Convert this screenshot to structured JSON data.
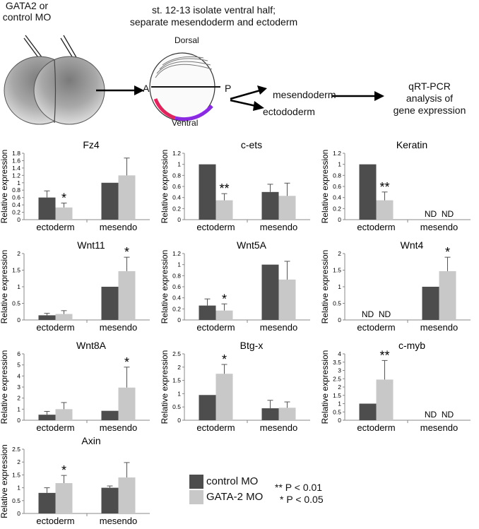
{
  "schematic": {
    "injection_label": [
      "GATA2 or",
      "control MO"
    ],
    "stage_label": [
      "st. 12-13 isolate ventral half;",
      "separate mesendoderm and ectoderm"
    ],
    "dorsal": "Dorsal",
    "ventral": "Ventral",
    "axis_a": "A",
    "axis_p": "P",
    "out_mesendoderm": "mesendoderm",
    "out_ectoderm": "ectododerm",
    "qpcr": [
      "qRT-PCR",
      "analysis of",
      "gene expression"
    ],
    "colors": {
      "red_band": "#e0245e",
      "purple_band": "#8a2be2"
    }
  },
  "legend": {
    "control": "control MO",
    "gata2": "GATA-2 MO",
    "p01": "** P < 0.01",
    "p05": "* P < 0.05"
  },
  "colors": {
    "control": "#4d4d4d",
    "gata2": "#c8c8c8"
  },
  "chart_data": [
    {
      "type": "bar",
      "title": "Fz4",
      "ylabel": "Relative expression",
      "categories": [
        "ectoderm",
        "mesendo"
      ],
      "ylim": [
        0,
        1.8
      ],
      "yticks": [
        0,
        0.2,
        0.4,
        0.6,
        0.8,
        1,
        1.2,
        1.4,
        1.6,
        1.8
      ],
      "series": [
        {
          "name": "control MO",
          "values": [
            0.6,
            1.0
          ],
          "errors": [
            0.18,
            0
          ]
        },
        {
          "name": "GATA-2 MO",
          "values": [
            0.33,
            1.2
          ],
          "errors": [
            0.12,
            0.47
          ]
        }
      ],
      "annotations": [
        {
          "category": 0,
          "series": 1,
          "text": "*"
        }
      ],
      "nd": []
    },
    {
      "type": "bar",
      "title": "c-ets",
      "ylabel": "Relative expression",
      "categories": [
        "ectoderm",
        "mesendo"
      ],
      "ylim": [
        0,
        1.2
      ],
      "yticks": [
        0,
        0.2,
        0.4,
        0.6,
        0.8,
        1,
        1.2
      ],
      "series": [
        {
          "name": "control MO",
          "values": [
            1.0,
            0.5
          ],
          "errors": [
            0,
            0.14
          ]
        },
        {
          "name": "GATA-2 MO",
          "values": [
            0.35,
            0.43
          ],
          "errors": [
            0.12,
            0.23
          ]
        }
      ],
      "annotations": [
        {
          "category": 0,
          "series": 1,
          "text": "**"
        }
      ],
      "nd": []
    },
    {
      "type": "bar",
      "title": "Keratin",
      "ylabel": "Relative expression",
      "categories": [
        "ectoderm",
        "mesendo"
      ],
      "ylim": [
        0,
        1.2
      ],
      "yticks": [
        0,
        0.2,
        0.4,
        0.6,
        0.8,
        1,
        1.2
      ],
      "series": [
        {
          "name": "control MO",
          "values": [
            1.0,
            0
          ],
          "errors": [
            0,
            0
          ]
        },
        {
          "name": "GATA-2 MO",
          "values": [
            0.35,
            0
          ],
          "errors": [
            0.15,
            0
          ]
        }
      ],
      "annotations": [
        {
          "category": 0,
          "series": 1,
          "text": "**"
        }
      ],
      "nd": [
        {
          "category": 1,
          "series": 0,
          "text": "ND"
        },
        {
          "category": 1,
          "series": 1,
          "text": "ND"
        }
      ]
    },
    {
      "type": "bar",
      "title": "Wnt11",
      "ylabel": "Relative expression",
      "categories": [
        "ectoderm",
        "mesendo"
      ],
      "ylim": [
        0,
        2
      ],
      "yticks": [
        0,
        0.5,
        1,
        1.5,
        2
      ],
      "series": [
        {
          "name": "control MO",
          "values": [
            0.14,
            1.0
          ],
          "errors": [
            0.06,
            0
          ]
        },
        {
          "name": "GATA-2 MO",
          "values": [
            0.18,
            1.47
          ],
          "errors": [
            0.1,
            0.42
          ]
        }
      ],
      "annotations": [
        {
          "category": 1,
          "series": 1,
          "text": "*"
        }
      ],
      "nd": []
    },
    {
      "type": "bar",
      "title": "Wnt5A",
      "ylabel": "Relative expression",
      "categories": [
        "ectoderm",
        "mesendo"
      ],
      "ylim": [
        0,
        1.2
      ],
      "yticks": [
        0,
        0.2,
        0.4,
        0.6,
        0.8,
        1,
        1.2
      ],
      "series": [
        {
          "name": "control MO",
          "values": [
            0.26,
            1.0
          ],
          "errors": [
            0.12,
            0
          ]
        },
        {
          "name": "GATA-2 MO",
          "values": [
            0.17,
            0.73
          ],
          "errors": [
            0.12,
            0.33
          ]
        }
      ],
      "annotations": [
        {
          "category": 0,
          "series": 1,
          "text": "*"
        }
      ],
      "nd": []
    },
    {
      "type": "bar",
      "title": "Wnt4",
      "ylabel": "Relative expression",
      "categories": [
        "ectoderm",
        "mesendo"
      ],
      "ylim": [
        0,
        2
      ],
      "yticks": [
        0,
        0.5,
        1,
        1.5,
        2
      ],
      "series": [
        {
          "name": "control MO",
          "values": [
            0,
            1.0
          ],
          "errors": [
            0,
            0
          ]
        },
        {
          "name": "GATA-2 MO",
          "values": [
            0,
            1.47
          ],
          "errors": [
            0,
            0.42
          ]
        }
      ],
      "annotations": [
        {
          "category": 1,
          "series": 1,
          "text": "*"
        }
      ],
      "nd": [
        {
          "category": 0,
          "series": 0,
          "text": "ND"
        },
        {
          "category": 0,
          "series": 1,
          "text": "ND"
        }
      ]
    },
    {
      "type": "bar",
      "title": "Wnt8A",
      "ylabel": "Relative expression",
      "categories": [
        "ectoderm",
        "mesendo"
      ],
      "ylim": [
        0,
        6
      ],
      "yticks": [
        0,
        1,
        2,
        3,
        4,
        5,
        6
      ],
      "series": [
        {
          "name": "control MO",
          "values": [
            0.5,
            0.85
          ],
          "errors": [
            0.3,
            0
          ]
        },
        {
          "name": "GATA-2 MO",
          "values": [
            1.0,
            2.95
          ],
          "errors": [
            0.6,
            1.85
          ]
        }
      ],
      "annotations": [
        {
          "category": 1,
          "series": 1,
          "text": "*"
        }
      ],
      "nd": []
    },
    {
      "type": "bar",
      "title": "Btg-x",
      "ylabel": "Relative expression",
      "categories": [
        "ectoderm",
        "mesendo"
      ],
      "ylim": [
        0,
        2.5
      ],
      "yticks": [
        0,
        0.5,
        1,
        1.5,
        2,
        2.5
      ],
      "series": [
        {
          "name": "control MO",
          "values": [
            0.95,
            0.45
          ],
          "errors": [
            0,
            0.3
          ]
        },
        {
          "name": "GATA-2 MO",
          "values": [
            1.75,
            0.47
          ],
          "errors": [
            0.35,
            0.22
          ]
        }
      ],
      "annotations": [
        {
          "category": 0,
          "series": 1,
          "text": "*"
        }
      ],
      "nd": []
    },
    {
      "type": "bar",
      "title": "c-myb",
      "ylabel": "Relative expression",
      "categories": [
        "ectoderm",
        "mesendo"
      ],
      "ylim": [
        0,
        4
      ],
      "yticks": [
        0,
        0.5,
        1,
        1.5,
        2,
        2.5,
        3,
        3.5,
        4
      ],
      "series": [
        {
          "name": "control MO",
          "values": [
            1.0,
            0
          ],
          "errors": [
            0,
            0
          ]
        },
        {
          "name": "GATA-2 MO",
          "values": [
            2.45,
            0
          ],
          "errors": [
            1.15,
            0
          ]
        }
      ],
      "annotations": [
        {
          "category": 0,
          "series": 1,
          "text": "**"
        }
      ],
      "nd": [
        {
          "category": 1,
          "series": 0,
          "text": "ND"
        },
        {
          "category": 1,
          "series": 1,
          "text": "ND"
        }
      ]
    },
    {
      "type": "bar",
      "title": "Axin",
      "ylabel": "Relative expression",
      "categories": [
        "ectoderm",
        "mesendo"
      ],
      "ylim": [
        0,
        2.5
      ],
      "yticks": [
        0,
        0.5,
        1,
        1.5,
        2,
        2.5
      ],
      "series": [
        {
          "name": "control MO",
          "values": [
            0.8,
            1.0
          ],
          "errors": [
            0.2,
            0.07
          ]
        },
        {
          "name": "GATA-2 MO",
          "values": [
            1.18,
            1.4
          ],
          "errors": [
            0.3,
            0.58
          ]
        }
      ],
      "annotations": [
        {
          "category": 0,
          "series": 1,
          "text": "*"
        }
      ],
      "nd": []
    }
  ]
}
